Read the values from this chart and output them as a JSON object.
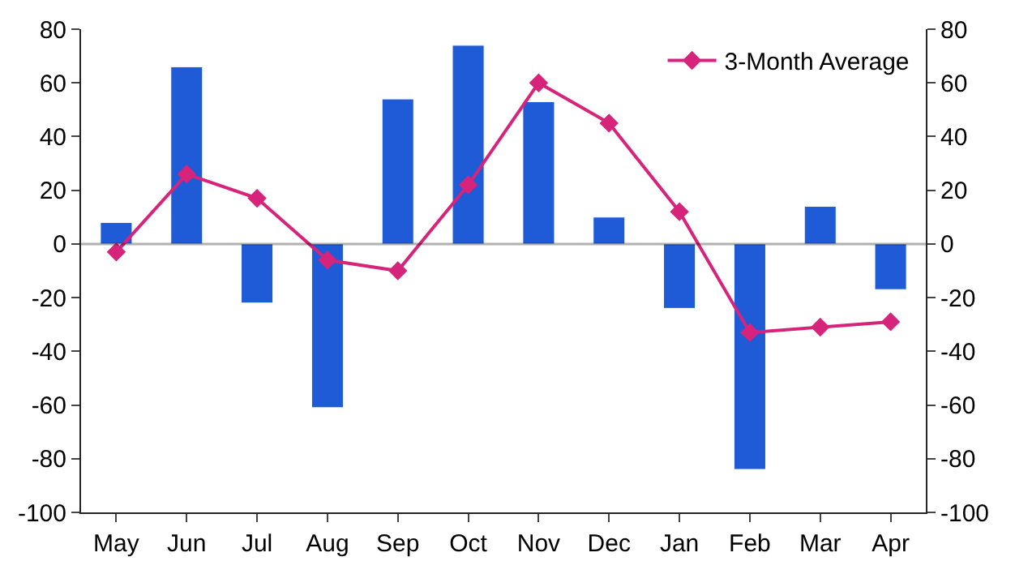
{
  "chart_data": {
    "type": "bar",
    "categories": [
      "May",
      "Jun",
      "Jul",
      "Aug",
      "Sep",
      "Oct",
      "Nov",
      "Dec",
      "Jan",
      "Feb",
      "Mar",
      "Apr"
    ],
    "series": [
      {
        "color": "#1f5bd6",
        "values": [
          8,
          66,
          -22,
          -61,
          54,
          74,
          53,
          10,
          -24,
          -84,
          14,
          -17
        ]
      },
      {
        "type": "line",
        "name": "3-Month Average",
        "color": "#d6247a",
        "marker": "diamond",
        "values": [
          -3,
          26,
          17,
          -6,
          -10,
          22,
          60,
          45,
          12,
          -33,
          -31,
          -29
        ]
      }
    ],
    "ylim": [
      -100,
      80
    ],
    "yticks": [
      -100,
      -80,
      -60,
      -40,
      -20,
      0,
      20,
      40,
      60,
      80
    ],
    "y2lim": [
      -100,
      80
    ],
    "y2ticks": [
      -100,
      -80,
      -60,
      -40,
      -20,
      0,
      20,
      40,
      60,
      80
    ],
    "grid": false,
    "ref_lines": [
      {
        "axis": "y",
        "value": 0,
        "color": "#000000"
      }
    ],
    "legend": "top right"
  }
}
